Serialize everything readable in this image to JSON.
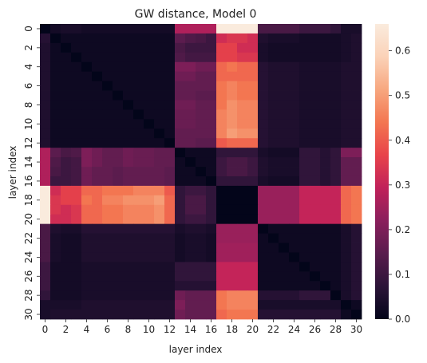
{
  "chart_data": {
    "type": "heatmap",
    "title": "GW distance, Model 0",
    "xlabel": "layer index",
    "ylabel": "layer index",
    "n": 31,
    "x_tick_labels": [
      "0",
      "2",
      "4",
      "6",
      "8",
      "10",
      "12",
      "14",
      "16",
      "18",
      "20",
      "22",
      "24",
      "26",
      "28",
      "30"
    ],
    "y_tick_labels": [
      "0",
      "2",
      "4",
      "6",
      "8",
      "10",
      "12",
      "14",
      "16",
      "18",
      "20",
      "22",
      "24",
      "26",
      "28",
      "30"
    ],
    "colorbar": {
      "range": [
        0,
        0.66
      ],
      "ticks": [
        "0.0",
        "0.1",
        "0.2",
        "0.3",
        "0.4",
        "0.5",
        "0.6"
      ],
      "colormap": "rocket",
      "stops": [
        "#03051a",
        "#2c1438",
        "#591c4d",
        "#8a1f5c",
        "#c0215a",
        "#e8434a",
        "#f37651",
        "#f7a77f",
        "#fbd2b8",
        "#faebdd"
      ]
    },
    "values": [
      [
        0.0,
        0.03,
        0.04,
        0.04,
        0.03,
        0.03,
        0.03,
        0.03,
        0.03,
        0.03,
        0.03,
        0.03,
        0.03,
        0.27,
        0.27,
        0.27,
        0.27,
        0.66,
        0.66,
        0.66,
        0.66,
        0.12,
        0.12,
        0.12,
        0.12,
        0.1,
        0.1,
        0.1,
        0.08,
        0.04,
        0.04
      ],
      [
        0.06,
        0.0,
        0.02,
        0.02,
        0.02,
        0.02,
        0.02,
        0.02,
        0.02,
        0.02,
        0.02,
        0.02,
        0.02,
        0.15,
        0.13,
        0.12,
        0.1,
        0.32,
        0.34,
        0.34,
        0.32,
        0.05,
        0.04,
        0.04,
        0.04,
        0.03,
        0.03,
        0.03,
        0.03,
        0.04,
        0.05
      ],
      [
        0.05,
        0.02,
        0.0,
        0.02,
        0.02,
        0.02,
        0.02,
        0.02,
        0.02,
        0.02,
        0.02,
        0.02,
        0.02,
        0.12,
        0.1,
        0.1,
        0.1,
        0.36,
        0.36,
        0.32,
        0.32,
        0.04,
        0.03,
        0.03,
        0.03,
        0.03,
        0.03,
        0.03,
        0.03,
        0.04,
        0.05
      ],
      [
        0.05,
        0.02,
        0.02,
        0.0,
        0.02,
        0.02,
        0.02,
        0.02,
        0.02,
        0.02,
        0.02,
        0.02,
        0.02,
        0.13,
        0.11,
        0.11,
        0.11,
        0.36,
        0.36,
        0.34,
        0.34,
        0.04,
        0.03,
        0.03,
        0.03,
        0.03,
        0.03,
        0.03,
        0.03,
        0.04,
        0.05
      ],
      [
        0.05,
        0.02,
        0.02,
        0.02,
        0.0,
        0.02,
        0.02,
        0.02,
        0.02,
        0.02,
        0.02,
        0.02,
        0.02,
        0.2,
        0.2,
        0.18,
        0.18,
        0.42,
        0.44,
        0.42,
        0.42,
        0.06,
        0.05,
        0.05,
        0.05,
        0.04,
        0.04,
        0.04,
        0.04,
        0.05,
        0.05
      ],
      [
        0.05,
        0.02,
        0.02,
        0.02,
        0.02,
        0.0,
        0.02,
        0.02,
        0.02,
        0.02,
        0.02,
        0.02,
        0.02,
        0.18,
        0.18,
        0.16,
        0.16,
        0.42,
        0.42,
        0.42,
        0.42,
        0.06,
        0.05,
        0.05,
        0.05,
        0.04,
        0.04,
        0.04,
        0.04,
        0.05,
        0.05
      ],
      [
        0.05,
        0.02,
        0.02,
        0.02,
        0.02,
        0.02,
        0.0,
        0.02,
        0.02,
        0.02,
        0.02,
        0.02,
        0.02,
        0.16,
        0.16,
        0.16,
        0.16,
        0.44,
        0.46,
        0.44,
        0.44,
        0.06,
        0.05,
        0.05,
        0.05,
        0.04,
        0.04,
        0.04,
        0.04,
        0.05,
        0.05
      ],
      [
        0.05,
        0.02,
        0.02,
        0.02,
        0.02,
        0.02,
        0.02,
        0.0,
        0.02,
        0.02,
        0.02,
        0.02,
        0.02,
        0.16,
        0.16,
        0.15,
        0.15,
        0.44,
        0.46,
        0.44,
        0.44,
        0.06,
        0.05,
        0.05,
        0.05,
        0.04,
        0.04,
        0.04,
        0.04,
        0.05,
        0.05
      ],
      [
        0.05,
        0.02,
        0.02,
        0.02,
        0.02,
        0.02,
        0.02,
        0.02,
        0.0,
        0.02,
        0.02,
        0.02,
        0.02,
        0.18,
        0.18,
        0.16,
        0.16,
        0.44,
        0.48,
        0.46,
        0.46,
        0.06,
        0.05,
        0.05,
        0.05,
        0.04,
        0.04,
        0.04,
        0.04,
        0.05,
        0.05
      ],
      [
        0.05,
        0.02,
        0.02,
        0.02,
        0.02,
        0.02,
        0.02,
        0.02,
        0.02,
        0.0,
        0.02,
        0.02,
        0.02,
        0.17,
        0.17,
        0.16,
        0.16,
        0.46,
        0.48,
        0.46,
        0.46,
        0.06,
        0.05,
        0.05,
        0.05,
        0.04,
        0.04,
        0.04,
        0.04,
        0.05,
        0.05
      ],
      [
        0.05,
        0.02,
        0.02,
        0.02,
        0.02,
        0.02,
        0.02,
        0.02,
        0.02,
        0.02,
        0.0,
        0.02,
        0.02,
        0.17,
        0.17,
        0.16,
        0.16,
        0.46,
        0.48,
        0.46,
        0.46,
        0.06,
        0.05,
        0.05,
        0.05,
        0.04,
        0.04,
        0.04,
        0.04,
        0.05,
        0.05
      ],
      [
        0.05,
        0.02,
        0.02,
        0.02,
        0.02,
        0.02,
        0.02,
        0.02,
        0.02,
        0.02,
        0.02,
        0.0,
        0.02,
        0.16,
        0.16,
        0.16,
        0.16,
        0.46,
        0.5,
        0.48,
        0.48,
        0.06,
        0.05,
        0.05,
        0.05,
        0.04,
        0.04,
        0.04,
        0.04,
        0.05,
        0.05
      ],
      [
        0.05,
        0.02,
        0.02,
        0.02,
        0.02,
        0.02,
        0.02,
        0.02,
        0.02,
        0.02,
        0.02,
        0.02,
        0.0,
        0.16,
        0.16,
        0.15,
        0.15,
        0.4,
        0.42,
        0.42,
        0.42,
        0.06,
        0.05,
        0.05,
        0.05,
        0.04,
        0.04,
        0.04,
        0.04,
        0.05,
        0.05
      ],
      [
        0.27,
        0.15,
        0.12,
        0.13,
        0.2,
        0.18,
        0.16,
        0.16,
        0.18,
        0.17,
        0.17,
        0.16,
        0.16,
        0.0,
        0.02,
        0.02,
        0.02,
        0.08,
        0.08,
        0.08,
        0.08,
        0.04,
        0.03,
        0.03,
        0.03,
        0.08,
        0.08,
        0.06,
        0.08,
        0.2,
        0.2
      ],
      [
        0.27,
        0.13,
        0.1,
        0.11,
        0.2,
        0.18,
        0.16,
        0.16,
        0.18,
        0.17,
        0.17,
        0.16,
        0.16,
        0.02,
        0.0,
        0.02,
        0.02,
        0.1,
        0.12,
        0.12,
        0.1,
        0.05,
        0.04,
        0.04,
        0.04,
        0.08,
        0.08,
        0.06,
        0.08,
        0.16,
        0.16
      ],
      [
        0.27,
        0.12,
        0.1,
        0.11,
        0.18,
        0.16,
        0.16,
        0.15,
        0.16,
        0.16,
        0.16,
        0.16,
        0.15,
        0.02,
        0.02,
        0.0,
        0.02,
        0.1,
        0.12,
        0.12,
        0.1,
        0.05,
        0.04,
        0.04,
        0.04,
        0.08,
        0.08,
        0.06,
        0.08,
        0.16,
        0.16
      ],
      [
        0.27,
        0.1,
        0.1,
        0.11,
        0.18,
        0.16,
        0.16,
        0.15,
        0.16,
        0.16,
        0.16,
        0.16,
        0.15,
        0.02,
        0.02,
        0.02,
        0.0,
        0.08,
        0.08,
        0.08,
        0.08,
        0.04,
        0.03,
        0.03,
        0.03,
        0.08,
        0.08,
        0.06,
        0.08,
        0.16,
        0.16
      ],
      [
        0.66,
        0.32,
        0.36,
        0.36,
        0.42,
        0.42,
        0.44,
        0.44,
        0.44,
        0.46,
        0.46,
        0.46,
        0.4,
        0.08,
        0.1,
        0.1,
        0.08,
        0.0,
        0.0,
        0.0,
        0.0,
        0.24,
        0.24,
        0.24,
        0.24,
        0.3,
        0.3,
        0.3,
        0.3,
        0.42,
        0.44
      ],
      [
        0.66,
        0.34,
        0.36,
        0.36,
        0.44,
        0.42,
        0.46,
        0.46,
        0.48,
        0.48,
        0.48,
        0.5,
        0.42,
        0.08,
        0.12,
        0.12,
        0.08,
        0.0,
        0.0,
        0.0,
        0.0,
        0.24,
        0.24,
        0.24,
        0.24,
        0.3,
        0.3,
        0.3,
        0.3,
        0.42,
        0.44
      ],
      [
        0.66,
        0.34,
        0.32,
        0.34,
        0.42,
        0.42,
        0.44,
        0.44,
        0.46,
        0.46,
        0.46,
        0.48,
        0.42,
        0.08,
        0.12,
        0.12,
        0.08,
        0.0,
        0.0,
        0.0,
        0.0,
        0.24,
        0.24,
        0.24,
        0.24,
        0.3,
        0.3,
        0.3,
        0.3,
        0.42,
        0.44
      ],
      [
        0.66,
        0.32,
        0.32,
        0.34,
        0.42,
        0.42,
        0.44,
        0.44,
        0.46,
        0.46,
        0.46,
        0.48,
        0.42,
        0.08,
        0.1,
        0.1,
        0.08,
        0.0,
        0.0,
        0.0,
        0.0,
        0.24,
        0.24,
        0.24,
        0.24,
        0.3,
        0.3,
        0.3,
        0.3,
        0.42,
        0.44
      ],
      [
        0.12,
        0.05,
        0.04,
        0.04,
        0.06,
        0.06,
        0.06,
        0.06,
        0.06,
        0.06,
        0.06,
        0.06,
        0.06,
        0.04,
        0.05,
        0.05,
        0.04,
        0.24,
        0.24,
        0.24,
        0.24,
        0.0,
        0.02,
        0.02,
        0.02,
        0.02,
        0.02,
        0.02,
        0.02,
        0.04,
        0.06
      ],
      [
        0.12,
        0.04,
        0.03,
        0.03,
        0.05,
        0.05,
        0.05,
        0.05,
        0.05,
        0.05,
        0.05,
        0.05,
        0.05,
        0.03,
        0.04,
        0.04,
        0.03,
        0.24,
        0.24,
        0.24,
        0.24,
        0.02,
        0.0,
        0.02,
        0.02,
        0.02,
        0.02,
        0.02,
        0.02,
        0.04,
        0.06
      ],
      [
        0.12,
        0.04,
        0.03,
        0.03,
        0.05,
        0.05,
        0.05,
        0.05,
        0.05,
        0.05,
        0.05,
        0.05,
        0.05,
        0.03,
        0.04,
        0.04,
        0.03,
        0.25,
        0.25,
        0.25,
        0.25,
        0.02,
        0.02,
        0.0,
        0.02,
        0.02,
        0.02,
        0.02,
        0.02,
        0.04,
        0.06
      ],
      [
        0.12,
        0.04,
        0.03,
        0.03,
        0.05,
        0.05,
        0.05,
        0.05,
        0.05,
        0.05,
        0.05,
        0.05,
        0.05,
        0.03,
        0.04,
        0.04,
        0.03,
        0.25,
        0.25,
        0.25,
        0.25,
        0.02,
        0.02,
        0.02,
        0.0,
        0.02,
        0.02,
        0.02,
        0.02,
        0.04,
        0.06
      ],
      [
        0.1,
        0.03,
        0.03,
        0.03,
        0.04,
        0.04,
        0.04,
        0.04,
        0.04,
        0.04,
        0.04,
        0.04,
        0.04,
        0.08,
        0.08,
        0.08,
        0.08,
        0.3,
        0.3,
        0.3,
        0.3,
        0.02,
        0.02,
        0.02,
        0.02,
        0.0,
        0.02,
        0.02,
        0.02,
        0.04,
        0.06
      ],
      [
        0.1,
        0.03,
        0.03,
        0.03,
        0.04,
        0.04,
        0.04,
        0.04,
        0.04,
        0.04,
        0.04,
        0.04,
        0.04,
        0.08,
        0.08,
        0.08,
        0.08,
        0.3,
        0.3,
        0.3,
        0.3,
        0.02,
        0.02,
        0.02,
        0.02,
        0.02,
        0.0,
        0.02,
        0.02,
        0.04,
        0.06
      ],
      [
        0.1,
        0.03,
        0.03,
        0.03,
        0.04,
        0.04,
        0.04,
        0.04,
        0.04,
        0.04,
        0.04,
        0.04,
        0.04,
        0.06,
        0.06,
        0.06,
        0.06,
        0.3,
        0.3,
        0.3,
        0.3,
        0.02,
        0.02,
        0.02,
        0.02,
        0.02,
        0.02,
        0.0,
        0.02,
        0.04,
        0.06
      ],
      [
        0.08,
        0.03,
        0.03,
        0.03,
        0.04,
        0.04,
        0.04,
        0.04,
        0.04,
        0.04,
        0.04,
        0.04,
        0.04,
        0.18,
        0.16,
        0.16,
        0.16,
        0.44,
        0.46,
        0.46,
        0.46,
        0.06,
        0.06,
        0.06,
        0.06,
        0.08,
        0.08,
        0.08,
        0.0,
        0.04,
        0.06
      ],
      [
        0.04,
        0.04,
        0.04,
        0.04,
        0.05,
        0.05,
        0.05,
        0.05,
        0.05,
        0.05,
        0.05,
        0.05,
        0.05,
        0.2,
        0.16,
        0.16,
        0.16,
        0.44,
        0.46,
        0.46,
        0.46,
        0.04,
        0.04,
        0.04,
        0.04,
        0.04,
        0.04,
        0.04,
        0.04,
        0.0,
        0.02
      ],
      [
        0.04,
        0.05,
        0.05,
        0.05,
        0.05,
        0.05,
        0.05,
        0.05,
        0.05,
        0.05,
        0.05,
        0.05,
        0.05,
        0.18,
        0.16,
        0.16,
        0.16,
        0.42,
        0.44,
        0.44,
        0.44,
        0.06,
        0.06,
        0.06,
        0.06,
        0.06,
        0.06,
        0.06,
        0.06,
        0.02,
        0.0
      ]
    ]
  }
}
